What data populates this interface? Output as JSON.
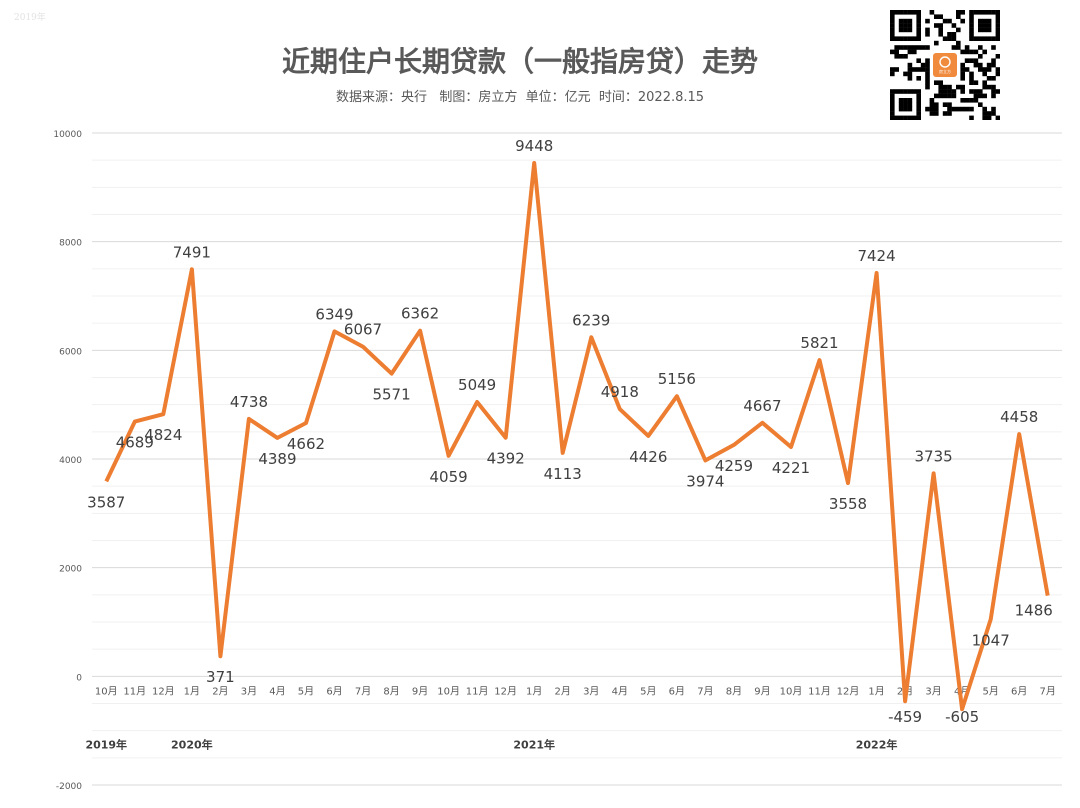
{
  "watermark": "2019年",
  "title": "近期住户长期贷款（一般指房贷）走势",
  "subtitle": "数据来源：央行   制图：房立方  单位：亿元  时间：2022.8.15",
  "qr_center_label": "房立方",
  "chart_data": {
    "type": "line",
    "title": "近期住户长期贷款（一般指房贷）走势",
    "xlabel": "",
    "ylabel": "",
    "ylim": [
      -2000,
      10000
    ],
    "yticks": [
      -2000,
      0,
      2000,
      4000,
      6000,
      8000,
      10000
    ],
    "grid": true,
    "line_color": "#ED7D31",
    "categories": [
      "10月",
      "11月",
      "12月",
      "1月",
      "2月",
      "3月",
      "4月",
      "5月",
      "6月",
      "7月",
      "8月",
      "9月",
      "10月",
      "11月",
      "12月",
      "1月",
      "2月",
      "3月",
      "4月",
      "5月",
      "6月",
      "7月",
      "8月",
      "9月",
      "10月",
      "11月",
      "12月",
      "1月",
      "2月",
      "3月",
      "4月",
      "5月",
      "6月",
      "7月"
    ],
    "values": [
      3587,
      4689,
      4824,
      7491,
      371,
      4738,
      4389,
      4662,
      6349,
      6067,
      5571,
      6362,
      4059,
      5049,
      4392,
      9448,
      4113,
      6239,
      4918,
      4426,
      5156,
      3974,
      4259,
      4667,
      4221,
      5821,
      3558,
      7424,
      -459,
      3735,
      -605,
      1047,
      4458,
      1486
    ],
    "year_labels": [
      {
        "index": 0,
        "label": "2019年"
      },
      {
        "index": 3,
        "label": "2020年"
      },
      {
        "index": 15,
        "label": "2021年"
      },
      {
        "index": 27,
        "label": "2022年"
      }
    ]
  }
}
